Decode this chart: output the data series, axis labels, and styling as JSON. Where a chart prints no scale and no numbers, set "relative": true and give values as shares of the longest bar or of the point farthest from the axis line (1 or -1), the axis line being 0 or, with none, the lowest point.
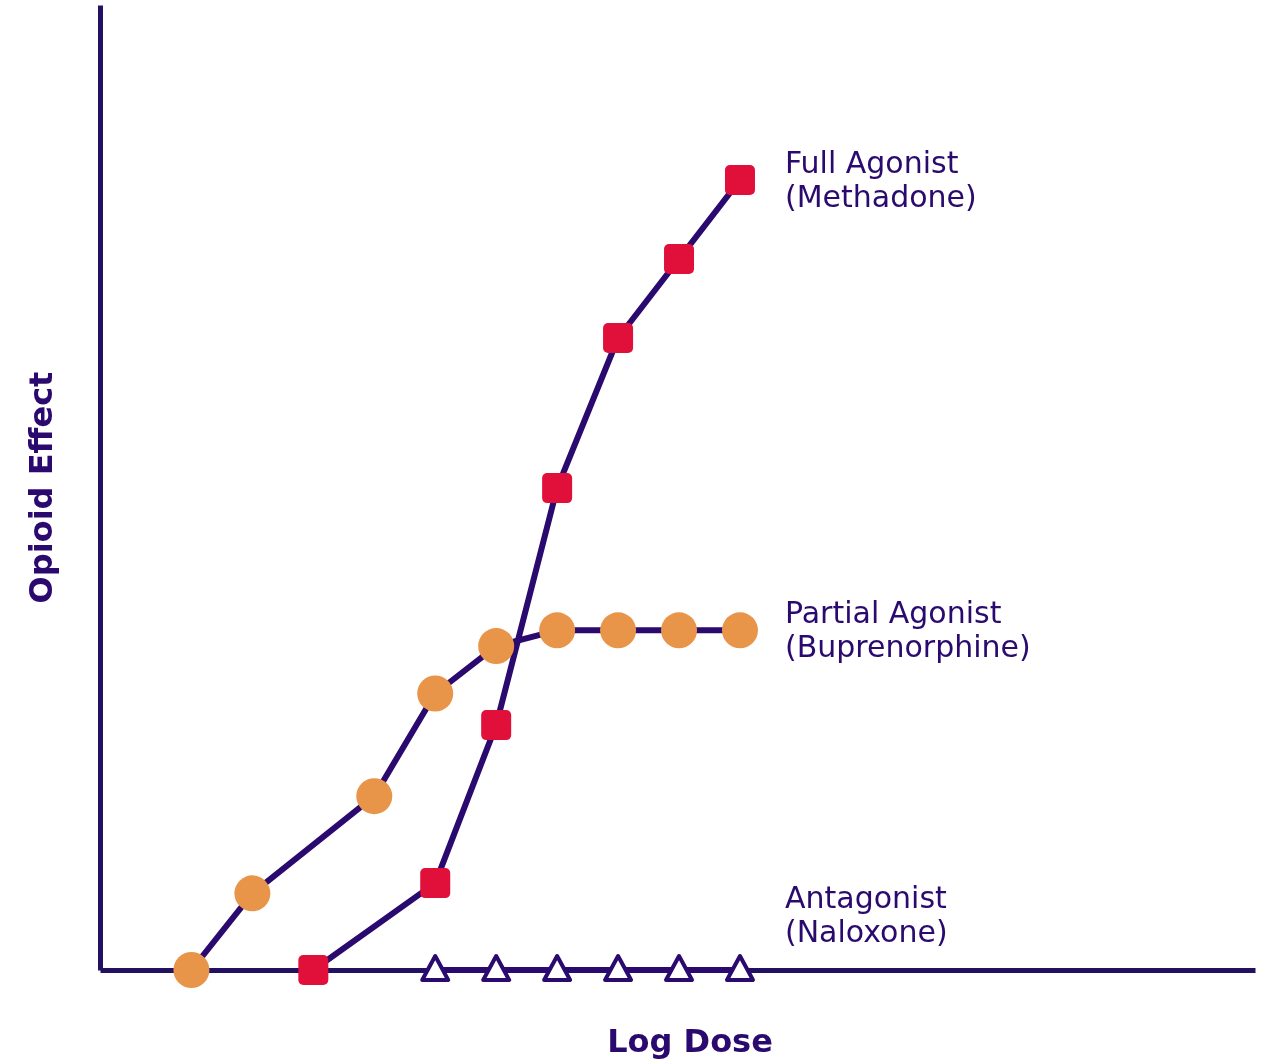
{
  "chart_data": {
    "type": "line",
    "relative": true,
    "xlabel": "Log Dose",
    "ylabel": "Opioid Effect",
    "grid": false,
    "legend": "right",
    "categories": [
      null,
      null,
      null,
      null,
      null,
      null,
      null,
      null,
      null,
      null,
      null,
      null,
      null,
      null,
      null,
      null,
      null,
      null
    ],
    "series": [
      {
        "name": "Full Agonist (Methadone)",
        "color": "#2a0a6e",
        "marker": "square",
        "colors": [
          "#e0103a",
          "#e0103a",
          "#e0103a",
          "#e0103a",
          "#e0103a",
          "#e0103a",
          "#e0103a",
          "#e0103a",
          "#e0103a",
          "#e0103a",
          "#e0103a",
          "#e0103a",
          "#e0103a",
          "#e0103a",
          "#e0103a",
          "#e0103a",
          "#e0103a",
          "#e0103a"
        ],
        "values": [
          null,
          null,
          0,
          null,
          0.11,
          0.31,
          0.61,
          0.8,
          0.9,
          1,
          null,
          null,
          null,
          null,
          null,
          null,
          null,
          null
        ]
      },
      {
        "name": "Partial Agonist (Buprenorphine)",
        "color": "#2a0a6e",
        "marker": "circle",
        "colors": [
          "#e8954a",
          "#e8954a",
          "#e8954a",
          "#e8954a",
          "#e8954a",
          "#e8954a",
          "#e8954a",
          "#e8954a",
          "#e8954a",
          "#e8954a",
          "#e8954a",
          "#e8954a",
          "#e8954a",
          "#e8954a",
          "#e8954a",
          "#e8954a",
          "#e8954a",
          "#e8954a"
        ],
        "values": [
          0,
          0.097,
          null,
          0.22,
          0.35,
          0.41,
          0.43,
          0.43,
          0.43,
          0.43,
          null,
          null,
          null,
          null,
          null,
          null,
          null,
          null
        ]
      },
      {
        "name": "Antagonist (Naloxone)",
        "color": "#2a0a6e",
        "marker": "triangle",
        "values": [
          null,
          null,
          null,
          null,
          0,
          0,
          0,
          0,
          0,
          0,
          null,
          null,
          null,
          null,
          null,
          null,
          null,
          null
        ]
      }
    ]
  }
}
